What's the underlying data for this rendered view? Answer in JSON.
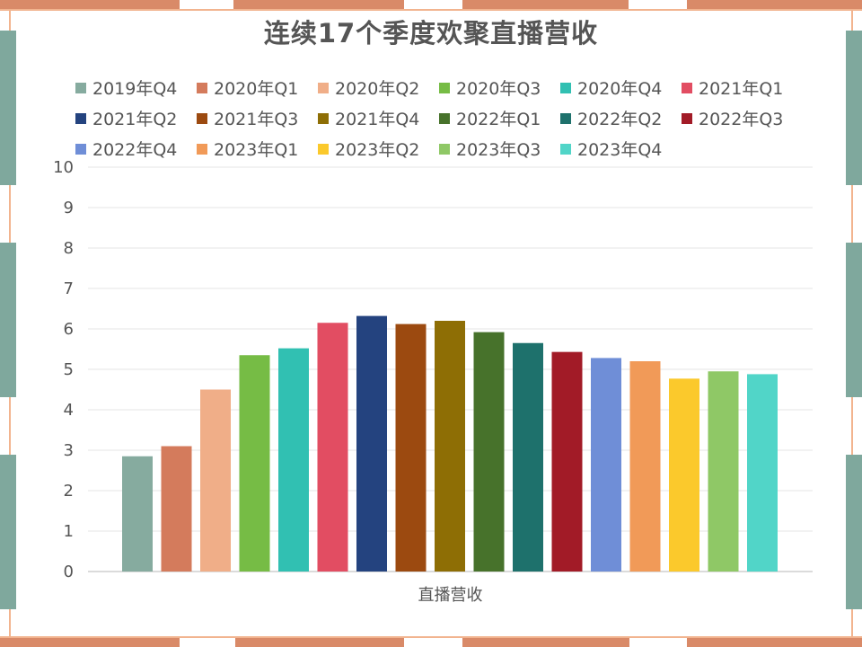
{
  "chart_data": {
    "type": "bar",
    "title": "连续17个季度欢聚直播营收",
    "xlabel": "直播营收",
    "ylabel": "",
    "ylim": [
      0,
      10
    ],
    "yticks": [
      "0",
      "1",
      "2",
      "3",
      "4",
      "5",
      "6",
      "7",
      "8",
      "9",
      "10"
    ],
    "grid": true,
    "legend_position": "top",
    "categories": [
      "直播营收"
    ],
    "series": [
      {
        "name": "2019年Q4",
        "values": [
          2.85
        ],
        "color": "#86ab9f"
      },
      {
        "name": "2020年Q1",
        "values": [
          3.1
        ],
        "color": "#d47b5c"
      },
      {
        "name": "2020年Q2",
        "values": [
          4.5
        ],
        "color": "#f0ae88"
      },
      {
        "name": "2020年Q3",
        "values": [
          5.35
        ],
        "color": "#76bc45"
      },
      {
        "name": "2020年Q4",
        "values": [
          5.52
        ],
        "color": "#31c0b2"
      },
      {
        "name": "2021年Q1",
        "values": [
          6.15
        ],
        "color": "#e24d62"
      },
      {
        "name": "2021年Q2",
        "values": [
          6.32
        ],
        "color": "#24437f"
      },
      {
        "name": "2021年Q3",
        "values": [
          6.12
        ],
        "color": "#9c4a10"
      },
      {
        "name": "2021年Q4",
        "values": [
          6.2
        ],
        "color": "#8e6e05"
      },
      {
        "name": "2022年Q1",
        "values": [
          5.92
        ],
        "color": "#47722b"
      },
      {
        "name": "2022年Q2",
        "values": [
          5.65
        ],
        "color": "#1e716c"
      },
      {
        "name": "2022年Q3",
        "values": [
          5.43
        ],
        "color": "#a21b27"
      },
      {
        "name": "2022年Q4",
        "values": [
          5.28
        ],
        "color": "#6f8ed7"
      },
      {
        "name": "2023年Q1",
        "values": [
          5.2
        ],
        "color": "#f19a58"
      },
      {
        "name": "2023年Q2",
        "values": [
          4.77
        ],
        "color": "#fbc92c"
      },
      {
        "name": "2023年Q3",
        "values": [
          4.95
        ],
        "color": "#8fc866"
      },
      {
        "name": "2023年Q4",
        "values": [
          4.88
        ],
        "color": "#51d5c8"
      }
    ]
  }
}
